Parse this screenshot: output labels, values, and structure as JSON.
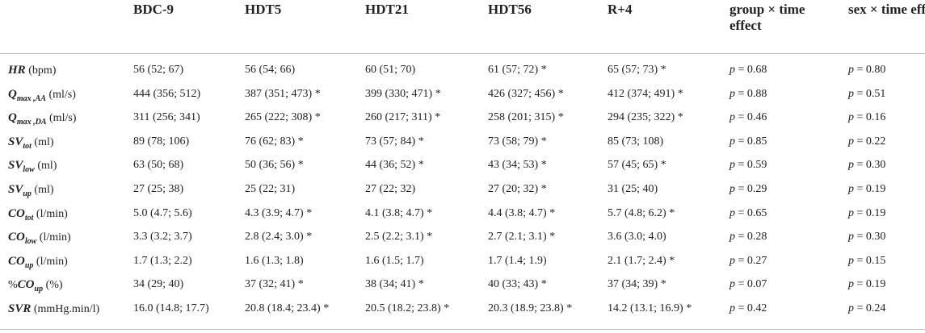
{
  "table": {
    "columns": [
      "BDC-9",
      "HDT5",
      "HDT21",
      "HDT56",
      "R+4",
      "group × time effect",
      "sex × time effect"
    ],
    "rows": [
      {
        "label": {
          "symbol": "HR",
          "unit": "(bpm)"
        },
        "cells": [
          "56 (52; 67)",
          "56 (54; 66)",
          "60 (51; 70)",
          "61 (57; 72) *",
          "65 (57; 73) *"
        ],
        "effects": [
          {
            "p": "p",
            "value": "= 0.68"
          },
          {
            "p": "p",
            "value": "= 0.80"
          }
        ]
      },
      {
        "label": {
          "symbol": "Q",
          "sub": "max ,AA",
          "unit": "(ml/s)"
        },
        "cells": [
          "444 (356; 512)",
          "387 (351; 473) *",
          "399 (330; 471) *",
          "426 (327; 456) *",
          "412 (374; 491) *"
        ],
        "effects": [
          {
            "p": "p",
            "value": "= 0.88"
          },
          {
            "p": "p",
            "value": "= 0.51"
          }
        ]
      },
      {
        "label": {
          "symbol": "Q",
          "sub": "max ,DA",
          "unit": "(ml/s)"
        },
        "cells": [
          "311 (256; 341)",
          "265 (222; 308) *",
          "260 (217; 311) *",
          "258 (201; 315) *",
          "294 (235; 322) *"
        ],
        "effects": [
          {
            "p": "p",
            "value": "= 0.46"
          },
          {
            "p": "p",
            "value": "= 0.16"
          }
        ]
      },
      {
        "label": {
          "symbol": "SV",
          "sub": "tot",
          "unit": "(ml)"
        },
        "cells": [
          "89 (78; 106)",
          "76 (62; 83) *",
          "73 (57; 84) *",
          "73 (58; 79) *",
          "85 (73; 108)"
        ],
        "effects": [
          {
            "p": "p",
            "value": "= 0.85"
          },
          {
            "p": "p",
            "value": "= 0.22"
          }
        ]
      },
      {
        "label": {
          "symbol": "SV",
          "sub": "low",
          "unit": "(ml)"
        },
        "cells": [
          "63 (50; 68)",
          "50 (36; 56) *",
          "44 (36; 52) *",
          "43 (34; 53) *",
          "57 (45; 65) *"
        ],
        "effects": [
          {
            "p": "p",
            "value": "= 0.59"
          },
          {
            "p": "p",
            "value": "= 0.30"
          }
        ]
      },
      {
        "label": {
          "symbol": "SV",
          "sub": "up",
          "unit": "(ml)"
        },
        "cells": [
          "27 (25; 38)",
          "25 (22; 31)",
          "27 (22; 32)",
          "27 (20; 32) *",
          "31 (25; 40)"
        ],
        "effects": [
          {
            "p": "p",
            "value": "= 0.29"
          },
          {
            "p": "p",
            "value": "= 0.19"
          }
        ]
      },
      {
        "label": {
          "symbol": "CO",
          "sub": "tot",
          "unit": "(l/min)"
        },
        "cells": [
          "5.0 (4.7; 5.6)",
          "4.3 (3.9; 4.7) *",
          "4.1 (3.8; 4.7) *",
          "4.4 (3.8; 4.7) *",
          "5.7 (4.8; 6.2) *"
        ],
        "effects": [
          {
            "p": "p",
            "value": "= 0.65"
          },
          {
            "p": "p",
            "value": "= 0.19"
          }
        ]
      },
      {
        "label": {
          "symbol": "CO",
          "sub": "low",
          "unit": "(l/min)"
        },
        "cells": [
          "3.3 (3.2; 3.7)",
          "2.8 (2.4; 3.0) *",
          "2.5 (2.2; 3.1) *",
          "2.7 (2.1; 3.1) *",
          "3.6 (3.0; 4.0)"
        ],
        "effects": [
          {
            "p": "p",
            "value": "= 0.28"
          },
          {
            "p": "p",
            "value": "= 0.30"
          }
        ]
      },
      {
        "label": {
          "symbol": "CO",
          "sub": "up",
          "unit": "(l/min)"
        },
        "cells": [
          "1.7 (1.3; 2.2)",
          "1.6 (1.3; 1.8)",
          "1.6 (1.5; 1.7)",
          "1.7 (1.4; 1.9)",
          "2.1 (1.7; 2.4) *"
        ],
        "effects": [
          {
            "p": "p",
            "value": "= 0.27"
          },
          {
            "p": "p",
            "value": "= 0.15"
          }
        ]
      },
      {
        "label": {
          "prefix": "%",
          "symbol": "CO",
          "sub": "up",
          "unit": "(%)"
        },
        "cells": [
          "34 (29; 40)",
          "37 (32; 41) *",
          "38 (34; 41) *",
          "40 (33; 43) *",
          "37 (34; 39) *"
        ],
        "effects": [
          {
            "p": "p",
            "value": "= 0.07"
          },
          {
            "p": "p",
            "value": "= 0.19"
          }
        ]
      },
      {
        "label": {
          "symbol": "SVR",
          "unit": "(mmHg.min/l)"
        },
        "cells": [
          "16.0 (14.8; 17.7)",
          "20.8 (18.4; 23.4) *",
          "20.5 (18.2; 23.8) *",
          "20.3 (18.9; 23.8) *",
          "14.2 (13.1; 16.9) *"
        ],
        "effects": [
          {
            "p": "p",
            "value": "= 0.42"
          },
          {
            "p": "p",
            "value": "= 0.24"
          }
        ]
      }
    ]
  }
}
